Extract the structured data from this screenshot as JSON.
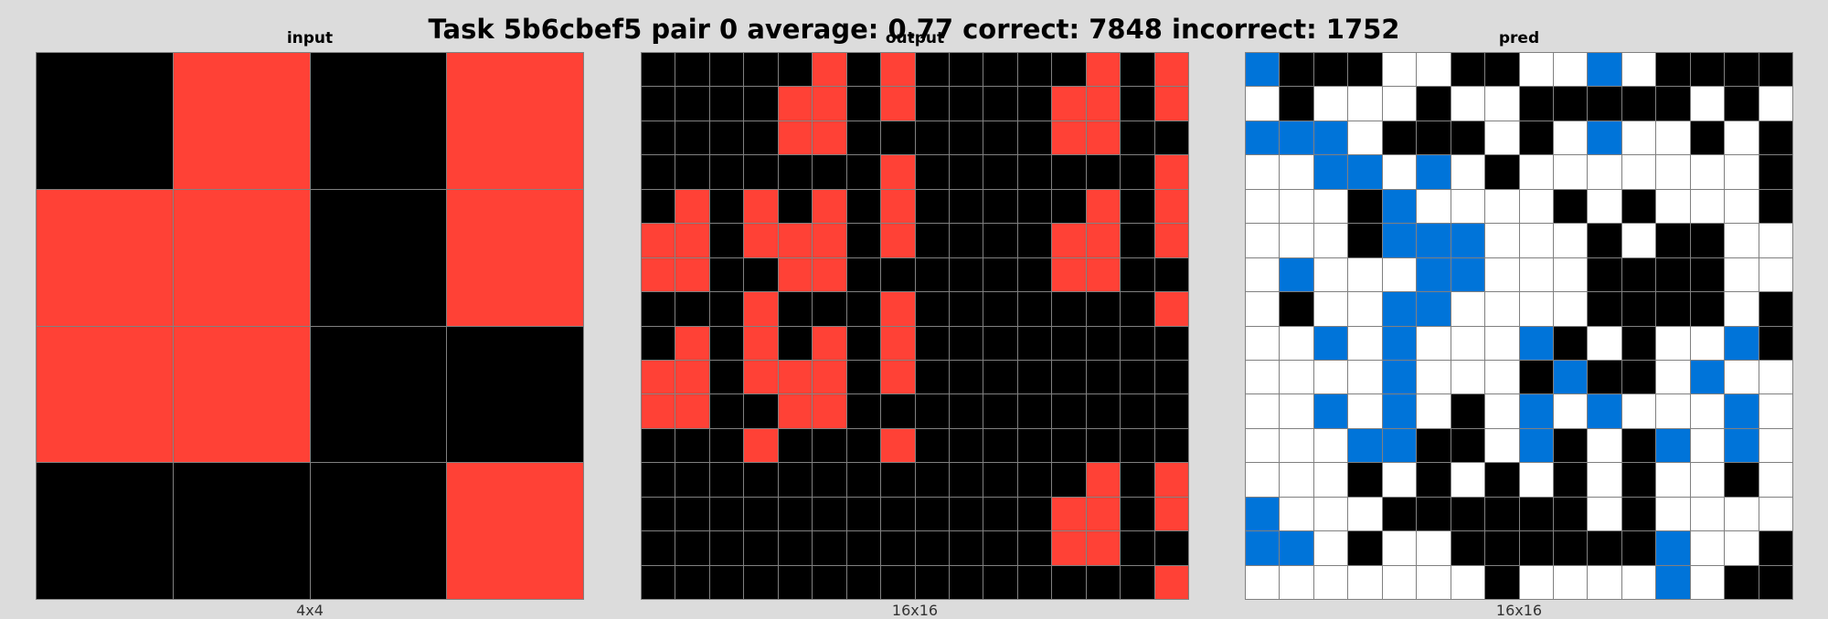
{
  "title": "Task 5b6cbef5 pair 0 average: 0.77 correct: 7848 incorrect: 1752",
  "palette": {
    "0": "#000000",
    "1": "#0074D9",
    "2": "#FF4136",
    "5": "#FFFFFF"
  },
  "panels": [
    {
      "name": "input",
      "title": "input",
      "size_label": "4x4",
      "rows": [
        "0202",
        "2202",
        "2200",
        "0002"
      ]
    },
    {
      "name": "output",
      "title": "output",
      "size_label": "16x16",
      "rows": [
        "0000020200000202",
        "0000220200002202",
        "0000220000002200",
        "0000000200000002",
        "0202020200000202",
        "2202220200002202",
        "2200220000002200",
        "0002000200000002",
        "0202020200000000",
        "2202220200000000",
        "2200220000000000",
        "0002000200000000",
        "0000000000000202",
        "0000000000002202",
        "0000000000002200",
        "0000000000000002"
      ]
    },
    {
      "name": "pred",
      "title": "pred",
      "size_label": "16x16",
      "rows": [
        "1000550055150000",
        "5055505500000505",
        "1115000505155050",
        "5511515055555550",
        "5550155550505550",
        "5550111555050055",
        "5155511555000055",
        "5055115555000050",
        "5515155510505510",
        "5555155501005155",
        "5515150515155515",
        "5551100510501515",
        "5550505050505505",
        "1555000000505555",
        "1150550000001550",
        "5555555055551500"
      ]
    }
  ]
}
